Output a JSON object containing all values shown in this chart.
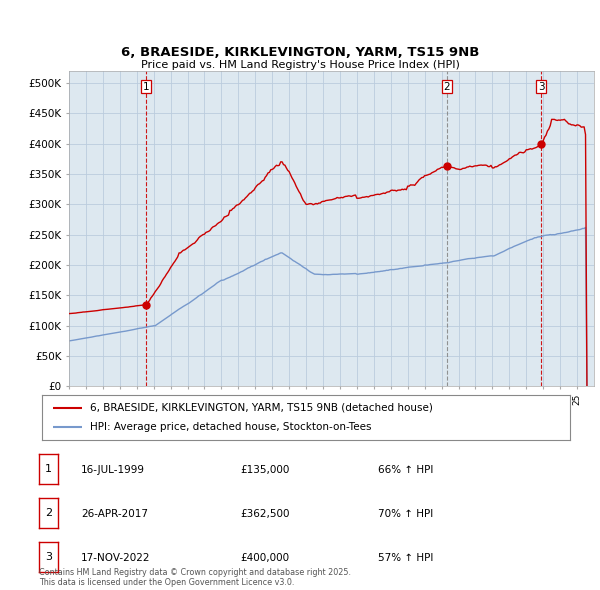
{
  "title": "6, BRAESIDE, KIRKLEVINGTON, YARM, TS15 9NB",
  "subtitle": "Price paid vs. HM Land Registry's House Price Index (HPI)",
  "ylim": [
    0,
    520000
  ],
  "yticks": [
    0,
    50000,
    100000,
    150000,
    200000,
    250000,
    300000,
    350000,
    400000,
    450000,
    500000
  ],
  "ytick_labels": [
    "£0",
    "£50K",
    "£100K",
    "£150K",
    "£200K",
    "£250K",
    "£300K",
    "£350K",
    "£400K",
    "£450K",
    "£500K"
  ],
  "xlim_start": 1995.0,
  "xlim_end": 2026.0,
  "sale_color": "#cc0000",
  "hpi_color": "#7799cc",
  "vline_colors": [
    "#cc0000",
    "#888888",
    "#cc0000"
  ],
  "vline_styles": [
    "--",
    "--",
    "--"
  ],
  "chart_bg": "#dde8f0",
  "legend_sale": "6, BRAESIDE, KIRKLEVINGTON, YARM, TS15 9NB (detached house)",
  "legend_hpi": "HPI: Average price, detached house, Stockton-on-Tees",
  "sales": [
    {
      "date": 1999.54,
      "price": 135000,
      "label": "1"
    },
    {
      "date": 2017.32,
      "price": 362500,
      "label": "2"
    },
    {
      "date": 2022.88,
      "price": 400000,
      "label": "3"
    }
  ],
  "table_rows": [
    {
      "num": "1",
      "date": "16-JUL-1999",
      "price": "£135,000",
      "hpi": "66% ↑ HPI"
    },
    {
      "num": "2",
      "date": "26-APR-2017",
      "price": "£362,500",
      "hpi": "70% ↑ HPI"
    },
    {
      "num": "3",
      "date": "17-NOV-2022",
      "price": "£400,000",
      "hpi": "57% ↑ HPI"
    }
  ],
  "footer": "Contains HM Land Registry data © Crown copyright and database right 2025.\nThis data is licensed under the Open Government Licence v3.0.",
  "background_color": "#ffffff",
  "grid_color": "#bbccdd"
}
